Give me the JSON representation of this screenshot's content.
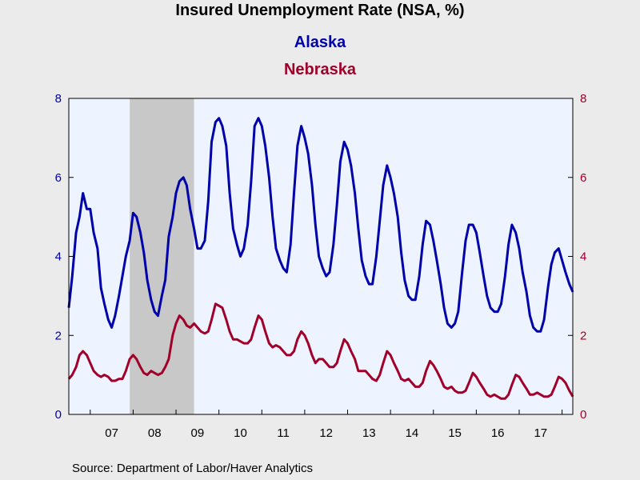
{
  "chart_data": {
    "type": "line",
    "title": "Insured Unemployment Rate (NSA, %)",
    "source": "Source:  Department of Labor/Haver Analytics",
    "x_tick_labels": [
      "07",
      "08",
      "09",
      "10",
      "11",
      "12",
      "13",
      "14",
      "15",
      "16",
      "17"
    ],
    "x_range_years": [
      2006.5,
      2018.25
    ],
    "y_left": {
      "ticks": [
        "0",
        "2",
        "4",
        "6",
        "8"
      ],
      "range": [
        0,
        8
      ],
      "color": "#0000aa"
    },
    "y_right": {
      "ticks": [
        "0",
        "2",
        "4",
        "6",
        "8"
      ],
      "range": [
        0,
        8
      ],
      "color": "#a0002a"
    },
    "grid": false,
    "plot_background": "#eef4ff",
    "recession_shade": {
      "start": 2007.92,
      "end": 2009.42,
      "color": "#c8c8c8"
    },
    "series": [
      {
        "name": "Alaska",
        "color": "#0000aa",
        "axis": "left",
        "points": [
          [
            2006.5,
            2.7
          ],
          [
            2006.58,
            3.5
          ],
          [
            2006.67,
            4.6
          ],
          [
            2006.75,
            5.0
          ],
          [
            2006.83,
            5.6
          ],
          [
            2006.92,
            5.2
          ],
          [
            2007.0,
            5.2
          ],
          [
            2007.08,
            4.6
          ],
          [
            2007.17,
            4.2
          ],
          [
            2007.25,
            3.2
          ],
          [
            2007.33,
            2.8
          ],
          [
            2007.42,
            2.4
          ],
          [
            2007.5,
            2.2
          ],
          [
            2007.58,
            2.5
          ],
          [
            2007.67,
            3.0
          ],
          [
            2007.75,
            3.5
          ],
          [
            2007.83,
            4.0
          ],
          [
            2007.92,
            4.4
          ],
          [
            2008.0,
            5.1
          ],
          [
            2008.08,
            5.0
          ],
          [
            2008.17,
            4.6
          ],
          [
            2008.25,
            4.1
          ],
          [
            2008.33,
            3.4
          ],
          [
            2008.42,
            2.9
          ],
          [
            2008.5,
            2.6
          ],
          [
            2008.58,
            2.5
          ],
          [
            2008.67,
            3.0
          ],
          [
            2008.75,
            3.4
          ],
          [
            2008.83,
            4.5
          ],
          [
            2008.92,
            5.0
          ],
          [
            2009.0,
            5.6
          ],
          [
            2009.08,
            5.9
          ],
          [
            2009.17,
            6.0
          ],
          [
            2009.25,
            5.8
          ],
          [
            2009.33,
            5.2
          ],
          [
            2009.42,
            4.7
          ],
          [
            2009.5,
            4.2
          ],
          [
            2009.58,
            4.2
          ],
          [
            2009.67,
            4.4
          ],
          [
            2009.75,
            5.4
          ],
          [
            2009.83,
            6.9
          ],
          [
            2009.92,
            7.4
          ],
          [
            2010.0,
            7.5
          ],
          [
            2010.08,
            7.3
          ],
          [
            2010.17,
            6.8
          ],
          [
            2010.25,
            5.6
          ],
          [
            2010.33,
            4.7
          ],
          [
            2010.42,
            4.3
          ],
          [
            2010.5,
            4.0
          ],
          [
            2010.58,
            4.2
          ],
          [
            2010.67,
            4.8
          ],
          [
            2010.75,
            5.9
          ],
          [
            2010.83,
            7.3
          ],
          [
            2010.92,
            7.5
          ],
          [
            2011.0,
            7.3
          ],
          [
            2011.08,
            6.8
          ],
          [
            2011.17,
            6.0
          ],
          [
            2011.25,
            5.0
          ],
          [
            2011.33,
            4.2
          ],
          [
            2011.42,
            3.9
          ],
          [
            2011.5,
            3.7
          ],
          [
            2011.58,
            3.6
          ],
          [
            2011.67,
            4.3
          ],
          [
            2011.75,
            5.6
          ],
          [
            2011.83,
            6.8
          ],
          [
            2011.92,
            7.3
          ],
          [
            2012.0,
            7.0
          ],
          [
            2012.08,
            6.6
          ],
          [
            2012.17,
            5.8
          ],
          [
            2012.25,
            4.8
          ],
          [
            2012.33,
            4.0
          ],
          [
            2012.42,
            3.7
          ],
          [
            2012.5,
            3.5
          ],
          [
            2012.58,
            3.6
          ],
          [
            2012.67,
            4.3
          ],
          [
            2012.75,
            5.3
          ],
          [
            2012.83,
            6.4
          ],
          [
            2012.92,
            6.9
          ],
          [
            2013.0,
            6.7
          ],
          [
            2013.08,
            6.3
          ],
          [
            2013.17,
            5.6
          ],
          [
            2013.25,
            4.7
          ],
          [
            2013.33,
            3.9
          ],
          [
            2013.42,
            3.5
          ],
          [
            2013.5,
            3.3
          ],
          [
            2013.58,
            3.3
          ],
          [
            2013.67,
            4.0
          ],
          [
            2013.75,
            4.9
          ],
          [
            2013.83,
            5.8
          ],
          [
            2013.92,
            6.3
          ],
          [
            2014.0,
            6.0
          ],
          [
            2014.08,
            5.6
          ],
          [
            2014.17,
            5.0
          ],
          [
            2014.25,
            4.1
          ],
          [
            2014.33,
            3.4
          ],
          [
            2014.42,
            3.0
          ],
          [
            2014.5,
            2.9
          ],
          [
            2014.58,
            2.9
          ],
          [
            2014.67,
            3.5
          ],
          [
            2014.75,
            4.3
          ],
          [
            2014.83,
            4.9
          ],
          [
            2014.92,
            4.8
          ],
          [
            2015.0,
            4.4
          ],
          [
            2015.08,
            3.9
          ],
          [
            2015.17,
            3.3
          ],
          [
            2015.25,
            2.7
          ],
          [
            2015.33,
            2.3
          ],
          [
            2015.42,
            2.2
          ],
          [
            2015.5,
            2.3
          ],
          [
            2015.58,
            2.6
          ],
          [
            2015.67,
            3.6
          ],
          [
            2015.75,
            4.4
          ],
          [
            2015.83,
            4.8
          ],
          [
            2015.92,
            4.8
          ],
          [
            2016.0,
            4.6
          ],
          [
            2016.08,
            4.1
          ],
          [
            2016.17,
            3.5
          ],
          [
            2016.25,
            3.0
          ],
          [
            2016.33,
            2.7
          ],
          [
            2016.42,
            2.6
          ],
          [
            2016.5,
            2.6
          ],
          [
            2016.58,
            2.8
          ],
          [
            2016.67,
            3.5
          ],
          [
            2016.75,
            4.3
          ],
          [
            2016.83,
            4.8
          ],
          [
            2016.92,
            4.6
          ],
          [
            2017.0,
            4.2
          ],
          [
            2017.08,
            3.6
          ],
          [
            2017.17,
            3.1
          ],
          [
            2017.25,
            2.5
          ],
          [
            2017.33,
            2.2
          ],
          [
            2017.42,
            2.1
          ],
          [
            2017.5,
            2.1
          ],
          [
            2017.58,
            2.4
          ],
          [
            2017.67,
            3.2
          ],
          [
            2017.75,
            3.8
          ],
          [
            2017.83,
            4.1
          ],
          [
            2017.92,
            4.2
          ],
          [
            2018.0,
            3.9
          ],
          [
            2018.08,
            3.6
          ],
          [
            2018.17,
            3.3
          ],
          [
            2018.25,
            3.1
          ]
        ]
      },
      {
        "name": "Nebraska",
        "color": "#a0002a",
        "axis": "right",
        "points": [
          [
            2006.5,
            0.9
          ],
          [
            2006.58,
            1.0
          ],
          [
            2006.67,
            1.2
          ],
          [
            2006.75,
            1.5
          ],
          [
            2006.83,
            1.6
          ],
          [
            2006.92,
            1.5
          ],
          [
            2007.0,
            1.3
          ],
          [
            2007.08,
            1.1
          ],
          [
            2007.17,
            1.0
          ],
          [
            2007.25,
            0.95
          ],
          [
            2007.33,
            1.0
          ],
          [
            2007.42,
            0.95
          ],
          [
            2007.5,
            0.85
          ],
          [
            2007.58,
            0.85
          ],
          [
            2007.67,
            0.9
          ],
          [
            2007.75,
            0.9
          ],
          [
            2007.83,
            1.1
          ],
          [
            2007.92,
            1.4
          ],
          [
            2008.0,
            1.5
          ],
          [
            2008.08,
            1.4
          ],
          [
            2008.17,
            1.2
          ],
          [
            2008.25,
            1.05
          ],
          [
            2008.33,
            1.0
          ],
          [
            2008.42,
            1.1
          ],
          [
            2008.5,
            1.05
          ],
          [
            2008.58,
            1.0
          ],
          [
            2008.67,
            1.05
          ],
          [
            2008.75,
            1.2
          ],
          [
            2008.83,
            1.4
          ],
          [
            2008.92,
            2.0
          ],
          [
            2009.0,
            2.3
          ],
          [
            2009.08,
            2.5
          ],
          [
            2009.17,
            2.4
          ],
          [
            2009.25,
            2.25
          ],
          [
            2009.33,
            2.2
          ],
          [
            2009.42,
            2.3
          ],
          [
            2009.5,
            2.2
          ],
          [
            2009.58,
            2.1
          ],
          [
            2009.67,
            2.05
          ],
          [
            2009.75,
            2.1
          ],
          [
            2009.83,
            2.4
          ],
          [
            2009.92,
            2.8
          ],
          [
            2010.0,
            2.75
          ],
          [
            2010.08,
            2.7
          ],
          [
            2010.17,
            2.4
          ],
          [
            2010.25,
            2.1
          ],
          [
            2010.33,
            1.9
          ],
          [
            2010.42,
            1.9
          ],
          [
            2010.5,
            1.85
          ],
          [
            2010.58,
            1.8
          ],
          [
            2010.67,
            1.8
          ],
          [
            2010.75,
            1.9
          ],
          [
            2010.83,
            2.2
          ],
          [
            2010.92,
            2.5
          ],
          [
            2011.0,
            2.4
          ],
          [
            2011.08,
            2.1
          ],
          [
            2011.17,
            1.8
          ],
          [
            2011.25,
            1.7
          ],
          [
            2011.33,
            1.75
          ],
          [
            2011.42,
            1.7
          ],
          [
            2011.5,
            1.6
          ],
          [
            2011.58,
            1.5
          ],
          [
            2011.67,
            1.5
          ],
          [
            2011.75,
            1.6
          ],
          [
            2011.83,
            1.9
          ],
          [
            2011.92,
            2.1
          ],
          [
            2012.0,
            2.0
          ],
          [
            2012.08,
            1.8
          ],
          [
            2012.17,
            1.5
          ],
          [
            2012.25,
            1.3
          ],
          [
            2012.33,
            1.4
          ],
          [
            2012.42,
            1.4
          ],
          [
            2012.5,
            1.3
          ],
          [
            2012.58,
            1.2
          ],
          [
            2012.67,
            1.2
          ],
          [
            2012.75,
            1.3
          ],
          [
            2012.83,
            1.6
          ],
          [
            2012.92,
            1.9
          ],
          [
            2013.0,
            1.8
          ],
          [
            2013.08,
            1.6
          ],
          [
            2013.17,
            1.4
          ],
          [
            2013.25,
            1.1
          ],
          [
            2013.33,
            1.1
          ],
          [
            2013.42,
            1.1
          ],
          [
            2013.5,
            1.0
          ],
          [
            2013.58,
            0.9
          ],
          [
            2013.67,
            0.85
          ],
          [
            2013.75,
            1.0
          ],
          [
            2013.83,
            1.3
          ],
          [
            2013.92,
            1.6
          ],
          [
            2014.0,
            1.5
          ],
          [
            2014.08,
            1.3
          ],
          [
            2014.17,
            1.1
          ],
          [
            2014.25,
            0.9
          ],
          [
            2014.33,
            0.85
          ],
          [
            2014.42,
            0.9
          ],
          [
            2014.5,
            0.8
          ],
          [
            2014.58,
            0.7
          ],
          [
            2014.67,
            0.7
          ],
          [
            2014.75,
            0.8
          ],
          [
            2014.83,
            1.1
          ],
          [
            2014.92,
            1.35
          ],
          [
            2015.0,
            1.25
          ],
          [
            2015.08,
            1.1
          ],
          [
            2015.17,
            0.9
          ],
          [
            2015.25,
            0.7
          ],
          [
            2015.33,
            0.65
          ],
          [
            2015.42,
            0.7
          ],
          [
            2015.5,
            0.6
          ],
          [
            2015.58,
            0.55
          ],
          [
            2015.67,
            0.55
          ],
          [
            2015.75,
            0.6
          ],
          [
            2015.83,
            0.8
          ],
          [
            2015.92,
            1.05
          ],
          [
            2016.0,
            0.95
          ],
          [
            2016.08,
            0.8
          ],
          [
            2016.17,
            0.65
          ],
          [
            2016.25,
            0.5
          ],
          [
            2016.33,
            0.45
          ],
          [
            2016.42,
            0.5
          ],
          [
            2016.5,
            0.45
          ],
          [
            2016.58,
            0.4
          ],
          [
            2016.67,
            0.4
          ],
          [
            2016.75,
            0.5
          ],
          [
            2016.83,
            0.75
          ],
          [
            2016.92,
            1.0
          ],
          [
            2017.0,
            0.95
          ],
          [
            2017.08,
            0.8
          ],
          [
            2017.17,
            0.65
          ],
          [
            2017.25,
            0.5
          ],
          [
            2017.33,
            0.5
          ],
          [
            2017.42,
            0.55
          ],
          [
            2017.5,
            0.5
          ],
          [
            2017.58,
            0.45
          ],
          [
            2017.67,
            0.45
          ],
          [
            2017.75,
            0.5
          ],
          [
            2017.83,
            0.7
          ],
          [
            2017.92,
            0.95
          ],
          [
            2018.0,
            0.9
          ],
          [
            2018.08,
            0.8
          ],
          [
            2018.17,
            0.6
          ],
          [
            2018.25,
            0.45
          ]
        ]
      }
    ]
  }
}
